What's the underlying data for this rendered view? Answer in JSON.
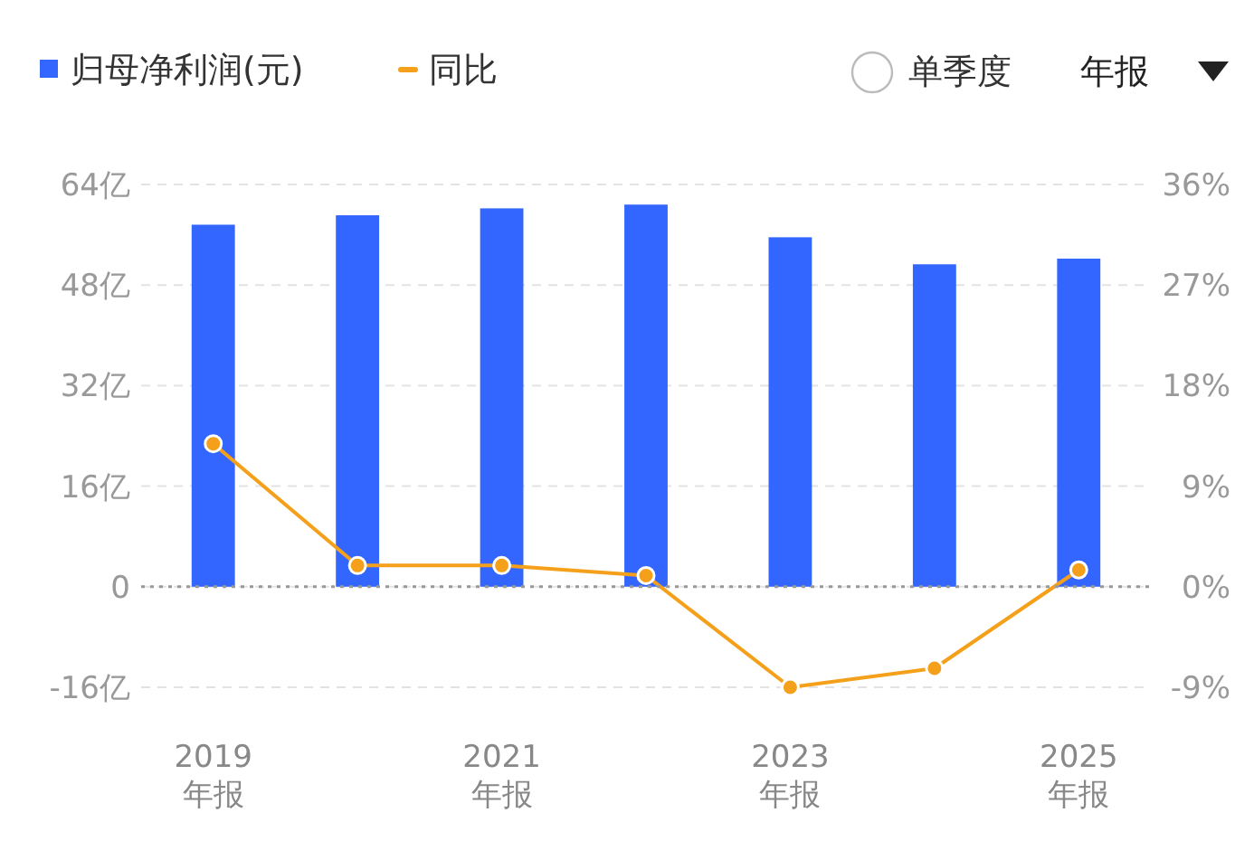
{
  "chart_data": {
    "type": "bar",
    "categories": [
      "2019\n年报",
      null,
      "2021\n年报",
      null,
      "2023\n年报",
      null,
      "2025\n年报"
    ],
    "series": [
      {
        "name": "归母净利润(元)",
        "color": "#3366ff",
        "values": [
          57.6,
          59.1,
          60.2,
          60.8,
          55.6,
          51.3,
          52.2
        ]
      },
      {
        "name": "同比",
        "type": "line",
        "axis": "y2",
        "color": "#f5a01a",
        "values": [
          12.8,
          1.9,
          1.9,
          1.0,
          -9.0,
          -7.3,
          1.5
        ]
      }
    ],
    "ylim": [
      -16,
      64
    ],
    "yticks": [
      {
        "value": -16,
        "label": "-16亿"
      },
      0,
      {
        "value": 16,
        "label": "16亿"
      },
      {
        "value": 32,
        "label": "32亿"
      },
      {
        "value": 48,
        "label": "48亿"
      },
      {
        "value": 64,
        "label": "64亿"
      }
    ],
    "y2lim": [
      -9,
      36
    ],
    "y2ticks": [
      {
        "value": -9,
        "label": "-9%"
      },
      {
        "value": 0,
        "label": "0%"
      },
      {
        "value": 9,
        "label": "9%"
      },
      {
        "value": 18,
        "label": "18%"
      },
      {
        "value": 27,
        "label": "27%"
      },
      {
        "value": 36,
        "label": "36%"
      }
    ],
    "ref_lines": [
      {
        "axis": "y",
        "value": 0,
        "color": "#999999",
        "line_style": "dotted"
      }
    ],
    "annotations": [
      "单季度",
      "年报"
    ],
    "grid": "y",
    "legend": "top left",
    "marker": "circle"
  }
}
